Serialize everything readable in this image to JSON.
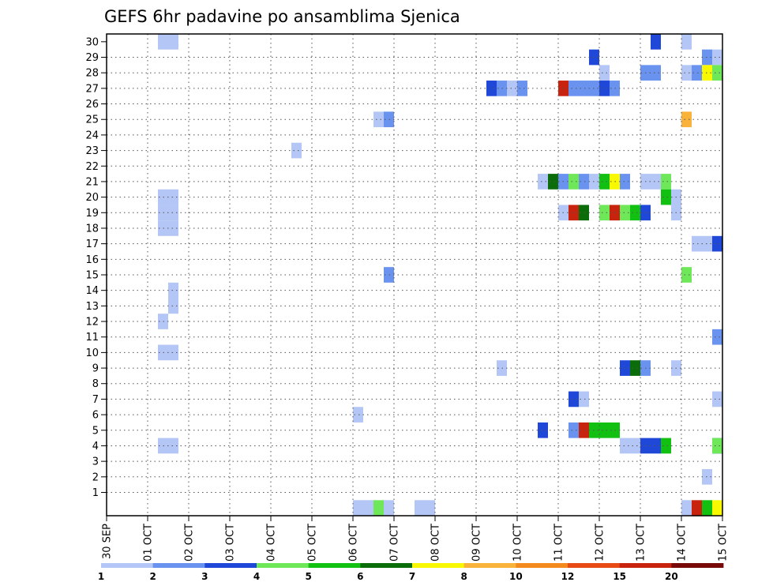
{
  "chart_data": {
    "type": "heatmap",
    "title": "GEFS 6hr padavine po ansamblima Sjenica",
    "xlabel": "",
    "ylabel": "",
    "x_ticks": [
      "30 SEP",
      "01 OCT",
      "02 OCT",
      "03 OCT",
      "04 OCT",
      "05 OCT",
      "06 OCT",
      "07 OCT",
      "08 OCT",
      "09 OCT",
      "10 OCT",
      "11 OCT",
      "12 OCT",
      "13 OCT",
      "14 OCT",
      "15 OCT"
    ],
    "y_ticks": [
      "1",
      "2",
      "3",
      "4",
      "5",
      "6",
      "7",
      "8",
      "9",
      "10",
      "11",
      "12",
      "13",
      "14",
      "15",
      "16",
      "17",
      "18",
      "19",
      "20",
      "21",
      "22",
      "23",
      "24",
      "25",
      "26",
      "27",
      "28",
      "29",
      "30"
    ],
    "x_range": [
      0,
      60
    ],
    "y_range": [
      -0.5,
      30.5
    ],
    "x_unit": "6-hour steps from 30 SEP",
    "y_unit": "ensemble member",
    "grid": true,
    "colorbar": {
      "labels": [
        "1",
        "2",
        "3",
        "4",
        "5",
        "6",
        "7",
        "8",
        "10",
        "12",
        "15",
        "20"
      ],
      "colors": [
        "#b3c6f5",
        "#6a93ef",
        "#1f48d9",
        "#6ee858",
        "#11c011",
        "#0a6d0a",
        "#f8f800",
        "#f9b33a",
        "#f28a1e",
        "#e84a15",
        "#c8230e",
        "#780a0a"
      ]
    },
    "cells": [
      [
        5,
        0,
        30
      ],
      [
        6,
        0,
        30
      ],
      [
        53,
        2,
        30
      ],
      [
        56,
        0,
        30
      ],
      [
        47,
        2,
        29
      ],
      [
        58,
        1,
        29
      ],
      [
        59,
        0,
        29
      ],
      [
        48,
        0,
        28
      ],
      [
        52,
        1,
        28
      ],
      [
        53,
        1,
        28
      ],
      [
        56,
        0,
        28
      ],
      [
        57,
        1,
        28
      ],
      [
        58,
        6,
        28
      ],
      [
        59,
        3,
        28
      ],
      [
        37,
        2,
        27
      ],
      [
        38,
        1,
        27
      ],
      [
        39,
        0,
        27
      ],
      [
        40,
        1,
        27
      ],
      [
        44,
        10,
        27
      ],
      [
        45,
        1,
        27
      ],
      [
        46,
        1,
        27
      ],
      [
        47,
        1,
        27
      ],
      [
        48,
        2,
        27
      ],
      [
        49,
        1,
        27
      ],
      [
        26,
        0,
        25
      ],
      [
        27,
        1,
        25
      ],
      [
        56,
        7,
        25
      ],
      [
        18,
        0,
        23
      ],
      [
        42,
        0,
        21
      ],
      [
        43,
        5,
        21
      ],
      [
        44,
        1,
        21
      ],
      [
        45,
        3,
        21
      ],
      [
        46,
        1,
        21
      ],
      [
        47,
        0,
        21
      ],
      [
        48,
        4,
        21
      ],
      [
        49,
        6,
        21
      ],
      [
        50,
        1,
        21
      ],
      [
        52,
        0,
        21
      ],
      [
        53,
        0,
        21
      ],
      [
        54,
        3,
        21
      ],
      [
        5,
        0,
        20
      ],
      [
        6,
        0,
        20
      ],
      [
        54,
        4,
        20
      ],
      [
        55,
        0,
        20
      ],
      [
        5,
        0,
        19
      ],
      [
        6,
        0,
        19
      ],
      [
        44,
        0,
        19
      ],
      [
        45,
        10,
        19
      ],
      [
        46,
        5,
        19
      ],
      [
        48,
        3,
        19
      ],
      [
        49,
        10,
        19
      ],
      [
        50,
        3,
        19
      ],
      [
        51,
        4,
        19
      ],
      [
        52,
        2,
        19
      ],
      [
        55,
        0,
        19
      ],
      [
        5,
        0,
        18
      ],
      [
        6,
        0,
        18
      ],
      [
        57,
        0,
        17
      ],
      [
        58,
        0,
        17
      ],
      [
        59,
        2,
        17
      ],
      [
        27,
        1,
        15
      ],
      [
        56,
        3,
        15
      ],
      [
        6,
        0,
        14
      ],
      [
        6,
        0,
        13
      ],
      [
        5,
        0,
        12
      ],
      [
        59,
        1,
        11
      ],
      [
        5,
        0,
        10
      ],
      [
        6,
        0,
        10
      ],
      [
        38,
        0,
        9
      ],
      [
        50,
        2,
        9
      ],
      [
        51,
        5,
        9
      ],
      [
        52,
        1,
        9
      ],
      [
        55,
        0,
        9
      ],
      [
        45,
        2,
        7
      ],
      [
        46,
        0,
        7
      ],
      [
        59,
        0,
        7
      ],
      [
        24,
        0,
        6
      ],
      [
        42,
        2,
        5
      ],
      [
        45,
        1,
        5
      ],
      [
        46,
        10,
        5
      ],
      [
        47,
        4,
        5
      ],
      [
        48,
        4,
        5
      ],
      [
        49,
        4,
        5
      ],
      [
        5,
        0,
        4
      ],
      [
        6,
        0,
        4
      ],
      [
        50,
        0,
        4
      ],
      [
        51,
        0,
        4
      ],
      [
        52,
        2,
        4
      ],
      [
        53,
        2,
        4
      ],
      [
        54,
        4,
        4
      ],
      [
        59,
        2,
        4
      ],
      [
        59,
        3,
        4
      ],
      [
        58,
        0,
        2
      ],
      [
        24,
        0,
        0
      ],
      [
        25,
        0,
        0
      ],
      [
        26,
        3,
        0
      ],
      [
        27,
        0,
        0
      ],
      [
        30,
        0,
        0
      ],
      [
        31,
        0,
        0
      ],
      [
        56,
        0,
        0
      ],
      [
        57,
        10,
        0
      ],
      [
        58,
        4,
        0
      ],
      [
        59,
        6,
        0
      ]
    ]
  }
}
